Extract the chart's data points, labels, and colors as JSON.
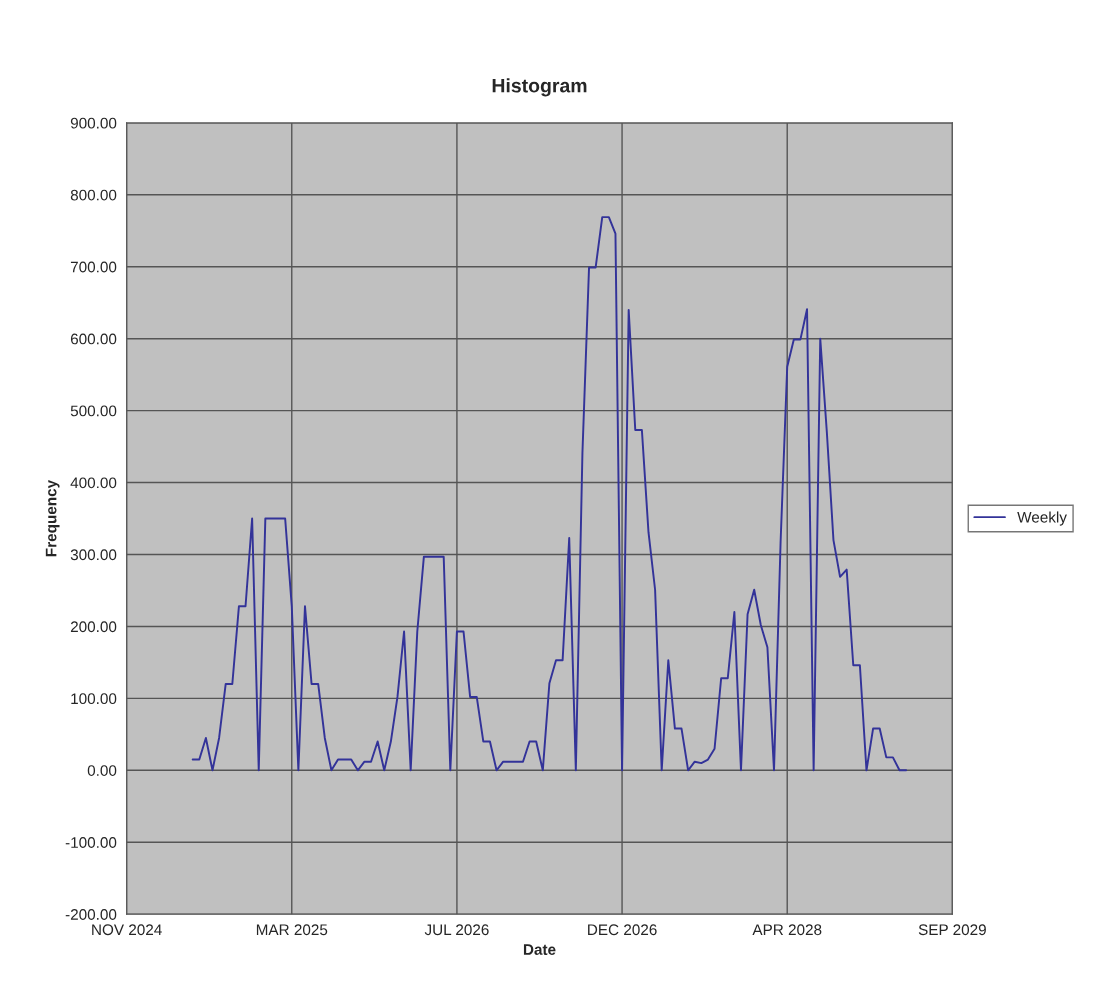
{
  "chart_data": {
    "type": "line",
    "title": "Histogram",
    "xlabel": "Date",
    "ylabel": "Frequency",
    "categories": [
      "NOV 2024",
      null,
      null,
      null,
      null,
      null,
      null,
      null,
      null,
      null,
      null,
      null,
      null,
      null,
      null,
      null,
      null,
      null,
      null,
      null,
      null,
      null,
      null,
      null,
      null,
      "MAR 2025",
      null,
      null,
      null,
      null,
      null,
      null,
      null,
      null,
      null,
      null,
      null,
      null,
      null,
      null,
      null,
      null,
      null,
      null,
      null,
      null,
      null,
      null,
      null,
      null,
      "JUL 2026",
      null,
      null,
      null,
      null,
      null,
      null,
      null,
      null,
      null,
      null,
      null,
      null,
      null,
      null,
      null,
      null,
      null,
      null,
      null,
      null,
      null,
      null,
      null,
      null,
      "DEC 2026",
      null,
      null,
      null,
      null,
      null,
      null,
      null,
      null,
      null,
      null,
      null,
      null,
      null,
      null,
      null,
      null,
      null,
      null,
      null,
      null,
      null,
      null,
      null,
      null,
      "APR 2028",
      null,
      null,
      null,
      null,
      null,
      null,
      null,
      null,
      null,
      null,
      null,
      null,
      null,
      null,
      null,
      null,
      null,
      null,
      null,
      null,
      null,
      null,
      null,
      null,
      "SEP 2029"
    ],
    "series": [
      {
        "name": "Weekly",
        "color": "#333399",
        "values": [
          null,
          null,
          null,
          null,
          null,
          null,
          null,
          null,
          null,
          null,
          15,
          15,
          45,
          0,
          45,
          120,
          120,
          228,
          228,
          350,
          0,
          350,
          350,
          350,
          350,
          228,
          0,
          228,
          120,
          120,
          45,
          0,
          15,
          15,
          15,
          0,
          12,
          12,
          40,
          0,
          40,
          102,
          193,
          0,
          193,
          297,
          297,
          297,
          297,
          0,
          193,
          193,
          102,
          102,
          40,
          40,
          0,
          12,
          12,
          12,
          12,
          40,
          40,
          0,
          121,
          153,
          153,
          323,
          0,
          441,
          699,
          699,
          769,
          769,
          746,
          0,
          640,
          473,
          473,
          331,
          251,
          0,
          153,
          58,
          58,
          0,
          12,
          10,
          15,
          30,
          128,
          128,
          220,
          0,
          217,
          251,
          202,
          171,
          0,
          318,
          561,
          599,
          599,
          641,
          0,
          600,
          470,
          320,
          269,
          279,
          146,
          146,
          0,
          58,
          58,
          18,
          18,
          0,
          0,
          null,
          null,
          null,
          null,
          null,
          null,
          null
        ]
      }
    ],
    "ylim": [
      -200,
      900
    ],
    "yticks": [
      {
        "value": -200,
        "label": "-200.00"
      },
      {
        "value": -100,
        "label": "-100.00"
      },
      {
        "value": 0,
        "label": "0.00"
      },
      {
        "value": 100,
        "label": "100.00"
      },
      {
        "value": 200,
        "label": "200.00"
      },
      {
        "value": 300,
        "label": "300.00"
      },
      {
        "value": 400,
        "label": "400.00"
      },
      {
        "value": 500,
        "label": "500.00"
      },
      {
        "value": 600,
        "label": "600.00"
      },
      {
        "value": 700,
        "label": "700.00"
      },
      {
        "value": 800,
        "label": "800.00"
      },
      {
        "value": 900,
        "label": "900.00"
      }
    ],
    "grid": true,
    "legend": "right",
    "marker": "none",
    "line_style": "solid"
  }
}
